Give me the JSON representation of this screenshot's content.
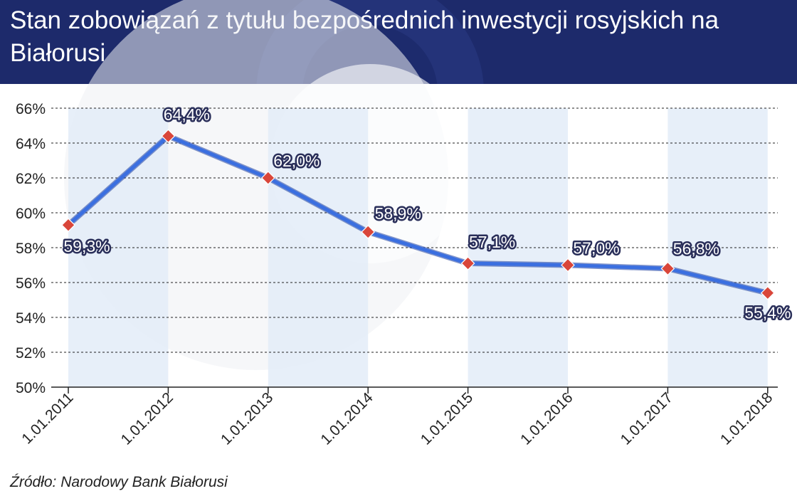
{
  "title": "Stan zobowiązań z tytułu bezpośrednich inwestycji rosyjskich na Białorusi",
  "source": "Źródło: Narodowy Bank Białorusi",
  "colors": {
    "header_bg": "#1d2a6b",
    "line": "#3b6fe0",
    "marker": "#d9463a",
    "band": "#e3ecf8",
    "grid": "#222222"
  },
  "chart_data": {
    "type": "line",
    "categories": [
      "1.01.2011",
      "1.01.2012",
      "1.01.2013",
      "1.01.2014",
      "1.01.2015",
      "1.01.2016",
      "1.01.2017",
      "1.01.2018"
    ],
    "series": [
      {
        "values": [
          59.3,
          64.4,
          62.0,
          58.9,
          57.1,
          57.0,
          56.8,
          55.4
        ]
      }
    ],
    "data_labels": [
      "59,3%",
      "64,4%",
      "62,0%",
      "58,9%",
      "57,1%",
      "57,0%",
      "56,8%",
      "55,4%"
    ],
    "y_ticks": [
      "50%",
      "52%",
      "54%",
      "56%",
      "58%",
      "60%",
      "62%",
      "64%",
      "66%"
    ],
    "ylim": [
      50,
      66
    ],
    "grid": "horizontal dashed",
    "legend": "none"
  }
}
